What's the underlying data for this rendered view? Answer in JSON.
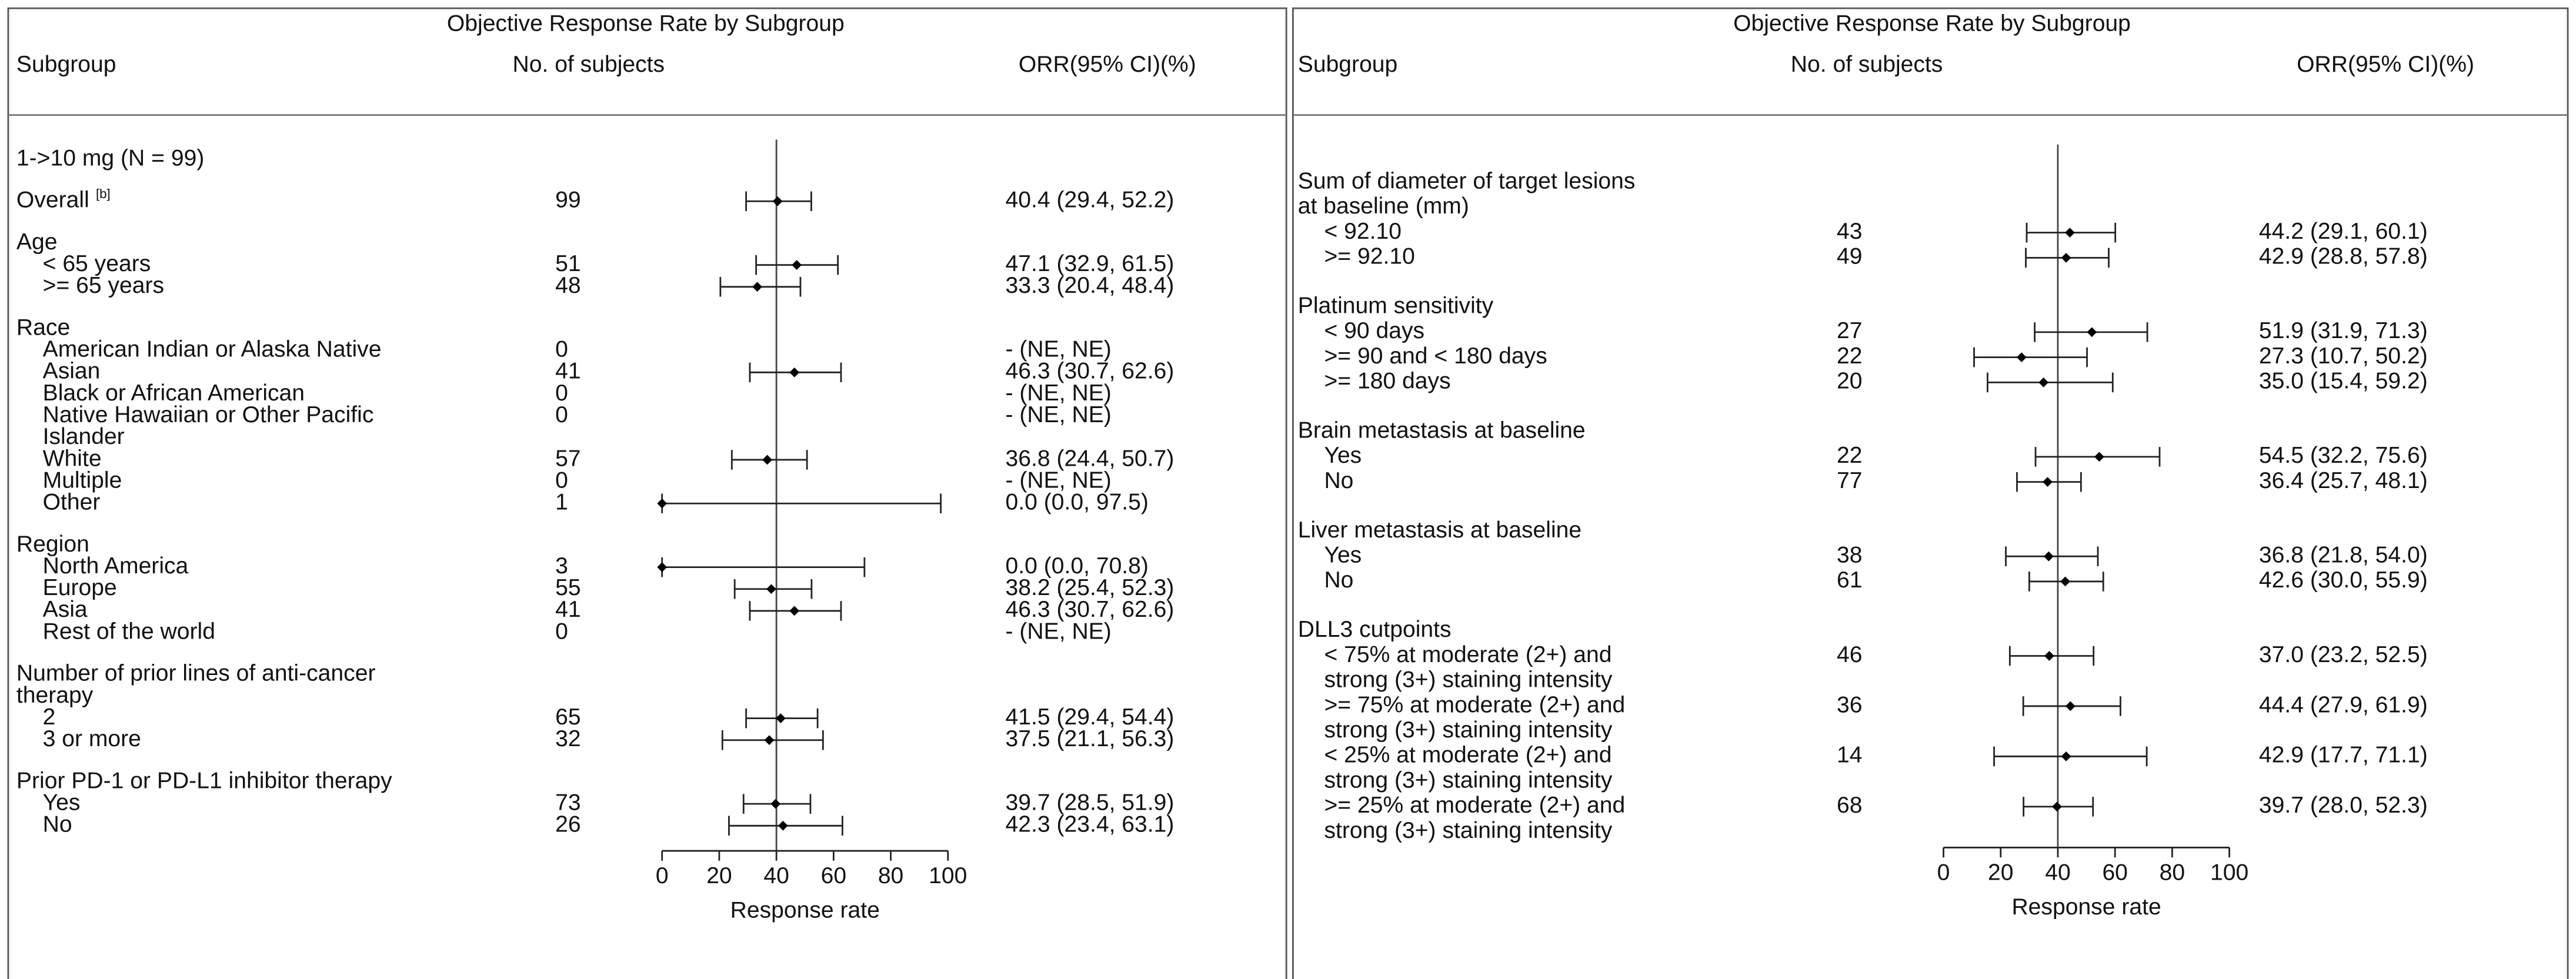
{
  "chart_data": [
    {
      "type": "forest",
      "title": "Objective Response Rate by Subgroup",
      "columns": [
        "Subgroup",
        "No. of subjects",
        "ORR(95% CI)(%)"
      ],
      "xlabel": "Response rate",
      "xlim": [
        0,
        100
      ],
      "xticks": [
        0,
        20,
        40,
        60,
        80,
        100
      ],
      "reference": 40,
      "entries": [
        {
          "label": "1->10 mg (N = 99)"
        },
        {
          "label": "Overall",
          "footnote": "[b]",
          "n": 99,
          "orr": "40.4 (29.4, 52.2)",
          "estimate": 40.4,
          "lower": 29.4,
          "upper": 52.2
        },
        {
          "label": "Age",
          "items": [
            {
              "label": "< 65 years",
              "n": 51,
              "orr": "47.1 (32.9, 61.5)",
              "estimate": 47.1,
              "lower": 32.9,
              "upper": 61.5
            },
            {
              "label": ">= 65 years",
              "n": 48,
              "orr": "33.3 (20.4, 48.4)",
              "estimate": 33.3,
              "lower": 20.4,
              "upper": 48.4
            }
          ]
        },
        {
          "label": "Race",
          "items": [
            {
              "label": "American Indian or Alaska Native",
              "n": 0,
              "orr": "- (NE, NE)",
              "estimate": null,
              "lower": null,
              "upper": null
            },
            {
              "label": "Asian",
              "n": 41,
              "orr": "46.3 (30.7, 62.6)",
              "estimate": 46.3,
              "lower": 30.7,
              "upper": 62.6
            },
            {
              "label": "Black or African American",
              "n": 0,
              "orr": "- (NE, NE)",
              "estimate": null,
              "lower": null,
              "upper": null
            },
            {
              "label": [
                "Native Hawaiian or Other Pacific",
                "Islander"
              ],
              "n": 0,
              "orr": "- (NE, NE)",
              "estimate": null,
              "lower": null,
              "upper": null
            },
            {
              "label": "White",
              "n": 57,
              "orr": "36.8 (24.4, 50.7)",
              "estimate": 36.8,
              "lower": 24.4,
              "upper": 50.7
            },
            {
              "label": "Multiple",
              "n": 0,
              "orr": "- (NE, NE)",
              "estimate": null,
              "lower": null,
              "upper": null
            },
            {
              "label": "Other",
              "n": 1,
              "orr": "0.0 (0.0, 97.5)",
              "estimate": 0.0,
              "lower": 0.0,
              "upper": 97.5
            }
          ]
        },
        {
          "label": "Region",
          "items": [
            {
              "label": "North America",
              "n": 3,
              "orr": "0.0 (0.0, 70.8)",
              "estimate": 0.0,
              "lower": 0.0,
              "upper": 70.8
            },
            {
              "label": "Europe",
              "n": 55,
              "orr": "38.2 (25.4, 52.3)",
              "estimate": 38.2,
              "lower": 25.4,
              "upper": 52.3
            },
            {
              "label": "Asia",
              "n": 41,
              "orr": "46.3 (30.7, 62.6)",
              "estimate": 46.3,
              "lower": 30.7,
              "upper": 62.6
            },
            {
              "label": "Rest of the world",
              "n": 0,
              "orr": "- (NE, NE)",
              "estimate": null,
              "lower": null,
              "upper": null
            }
          ]
        },
        {
          "label": [
            "Number of prior lines of anti-cancer",
            "therapy"
          ],
          "items": [
            {
              "label": "2",
              "n": 65,
              "orr": "41.5 (29.4, 54.4)",
              "estimate": 41.5,
              "lower": 29.4,
              "upper": 54.4
            },
            {
              "label": "3 or more",
              "n": 32,
              "orr": "37.5 (21.1, 56.3)",
              "estimate": 37.5,
              "lower": 21.1,
              "upper": 56.3
            }
          ]
        },
        {
          "label": "Prior PD-1 or PD-L1 inhibitor therapy",
          "items": [
            {
              "label": "Yes",
              "n": 73,
              "orr": "39.7 (28.5, 51.9)",
              "estimate": 39.7,
              "lower": 28.5,
              "upper": 51.9
            },
            {
              "label": "No",
              "n": 26,
              "orr": "42.3 (23.4, 63.1)",
              "estimate": 42.3,
              "lower": 23.4,
              "upper": 63.1
            }
          ]
        }
      ]
    },
    {
      "type": "forest",
      "title": "Objective Response Rate by Subgroup",
      "columns": [
        "Subgroup",
        "No. of subjects",
        "ORR(95% CI)(%)"
      ],
      "xlabel": "Response rate",
      "xlim": [
        0,
        100
      ],
      "xticks": [
        0,
        20,
        40,
        60,
        80,
        100
      ],
      "reference": 40,
      "entries": [
        {
          "label": [
            "Sum of diameter of target lesions",
            "at baseline (mm)"
          ],
          "items": [
            {
              "label": "< 92.10",
              "n": 43,
              "orr": "44.2 (29.1, 60.1)",
              "estimate": 44.2,
              "lower": 29.1,
              "upper": 60.1
            },
            {
              "label": ">= 92.10",
              "n": 49,
              "orr": "42.9 (28.8, 57.8)",
              "estimate": 42.9,
              "lower": 28.8,
              "upper": 57.8
            }
          ]
        },
        {
          "label": "Platinum sensitivity",
          "items": [
            {
              "label": "< 90 days",
              "n": 27,
              "orr": "51.9 (31.9, 71.3)",
              "estimate": 51.9,
              "lower": 31.9,
              "upper": 71.3
            },
            {
              "label": ">= 90 and < 180 days",
              "n": 22,
              "orr": "27.3 (10.7, 50.2)",
              "estimate": 27.3,
              "lower": 10.7,
              "upper": 50.2
            },
            {
              "label": ">= 180 days",
              "n": 20,
              "orr": "35.0 (15.4, 59.2)",
              "estimate": 35.0,
              "lower": 15.4,
              "upper": 59.2
            }
          ]
        },
        {
          "label": "Brain metastasis at baseline",
          "items": [
            {
              "label": "Yes",
              "n": 22,
              "orr": "54.5 (32.2, 75.6)",
              "estimate": 54.5,
              "lower": 32.2,
              "upper": 75.6
            },
            {
              "label": "No",
              "n": 77,
              "orr": "36.4 (25.7, 48.1)",
              "estimate": 36.4,
              "lower": 25.7,
              "upper": 48.1
            }
          ]
        },
        {
          "label": "Liver metastasis at baseline",
          "items": [
            {
              "label": "Yes",
              "n": 38,
              "orr": "36.8 (21.8, 54.0)",
              "estimate": 36.8,
              "lower": 21.8,
              "upper": 54.0
            },
            {
              "label": "No",
              "n": 61,
              "orr": "42.6 (30.0, 55.9)",
              "estimate": 42.6,
              "lower": 30.0,
              "upper": 55.9
            }
          ]
        },
        {
          "label": "DLL3 cutpoints",
          "items": [
            {
              "label": [
                "< 75% at moderate (2+) and",
                "strong (3+) staining intensity"
              ],
              "n": 46,
              "orr": "37.0 (23.2, 52.5)",
              "estimate": 37.0,
              "lower": 23.2,
              "upper": 52.5
            },
            {
              "label": [
                ">= 75% at moderate (2+) and",
                "strong (3+) staining intensity"
              ],
              "n": 36,
              "orr": "44.4 (27.9, 61.9)",
              "estimate": 44.4,
              "lower": 27.9,
              "upper": 61.9
            },
            {
              "label": [
                "< 25% at moderate (2+) and",
                "strong (3+) staining intensity"
              ],
              "n": 14,
              "orr": "42.9 (17.7, 71.1)",
              "estimate": 42.9,
              "lower": 17.7,
              "upper": 71.1
            },
            {
              "label": [
                ">= 25% at moderate (2+) and",
                "strong (3+) staining intensity"
              ],
              "n": 68,
              "orr": "39.7 (28.0, 52.3)",
              "estimate": 39.7,
              "lower": 28.0,
              "upper": 52.3
            }
          ]
        }
      ]
    }
  ]
}
